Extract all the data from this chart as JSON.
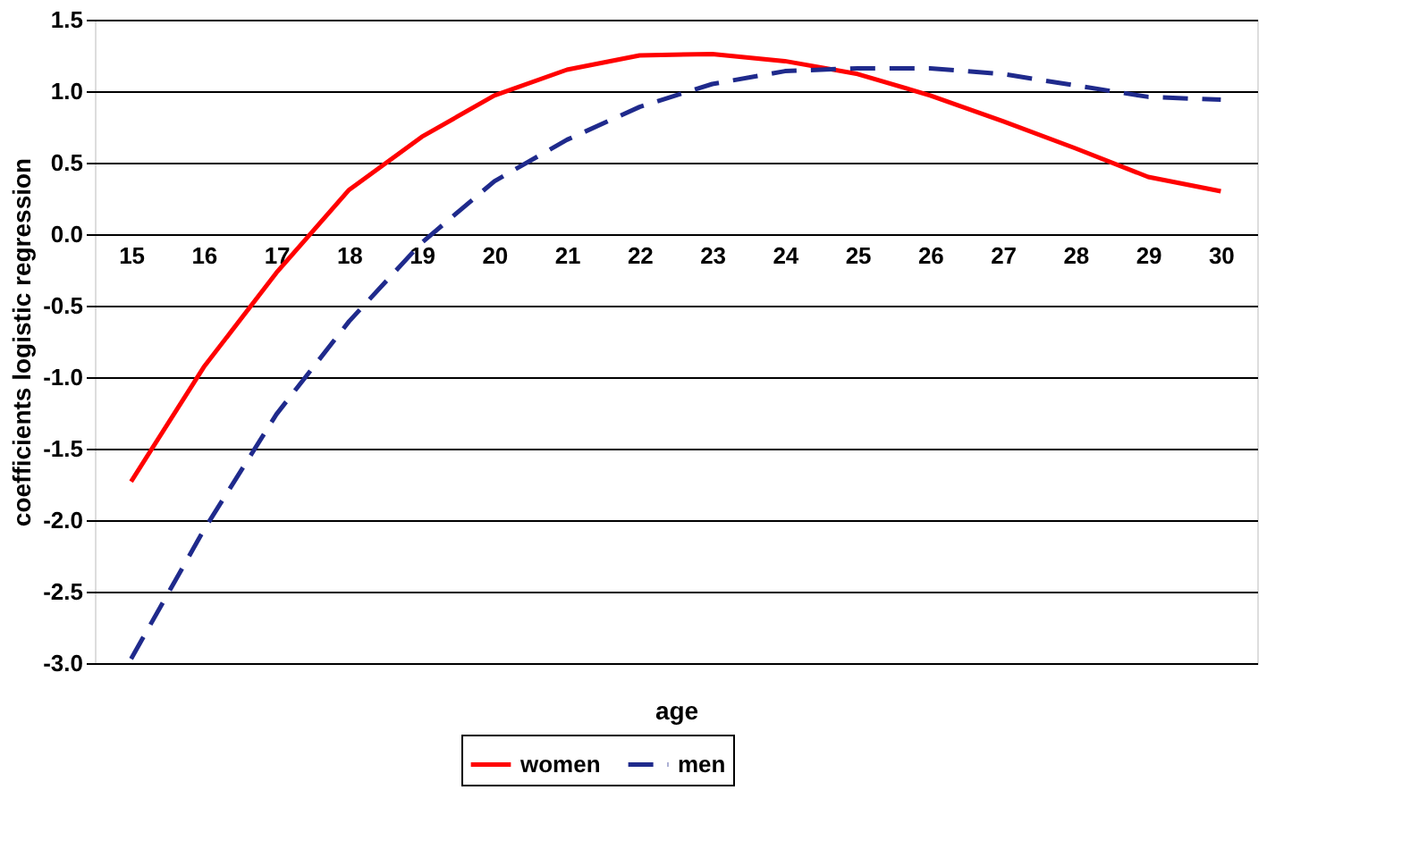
{
  "chart_data": {
    "type": "line",
    "xlabel": "age",
    "ylabel": "coefficients logistic regression",
    "categories": [
      "15",
      "16",
      "17",
      "18",
      "19",
      "20",
      "21",
      "22",
      "23",
      "24",
      "25",
      "26",
      "27",
      "28",
      "29",
      "30"
    ],
    "series": [
      {
        "name": "women",
        "color": "#ff0000",
        "line_style": "solid",
        "values": [
          -1.73,
          -0.93,
          -0.27,
          0.31,
          0.68,
          0.97,
          1.15,
          1.25,
          1.26,
          1.21,
          1.12,
          0.97,
          0.79,
          0.6,
          0.4,
          0.3
        ]
      },
      {
        "name": "men",
        "color": "#1f2a8c",
        "line_style": "dashed",
        "values": [
          -2.97,
          -2.07,
          -1.26,
          -0.61,
          -0.06,
          0.37,
          0.66,
          0.89,
          1.05,
          1.14,
          1.16,
          1.16,
          1.12,
          1.04,
          0.96,
          0.94
        ]
      }
    ],
    "ylim": [
      -3.0,
      1.5
    ],
    "yticks": [
      {
        "value": -3.0,
        "label": "-3.0"
      },
      {
        "value": -2.5,
        "label": "-2.5"
      },
      {
        "value": -2.0,
        "label": "-2.0"
      },
      {
        "value": -1.5,
        "label": "-1.5"
      },
      {
        "value": -1.0,
        "label": "-1.0"
      },
      {
        "value": -0.5,
        "label": "-0.5"
      },
      {
        "value": 0.0,
        "label": "0.0"
      },
      {
        "value": 0.5,
        "label": "0.5"
      },
      {
        "value": 1.0,
        "label": "1.0"
      },
      {
        "value": 1.5,
        "label": "1.5"
      }
    ],
    "grid": "y",
    "legend": "bottom",
    "marker": "none"
  }
}
